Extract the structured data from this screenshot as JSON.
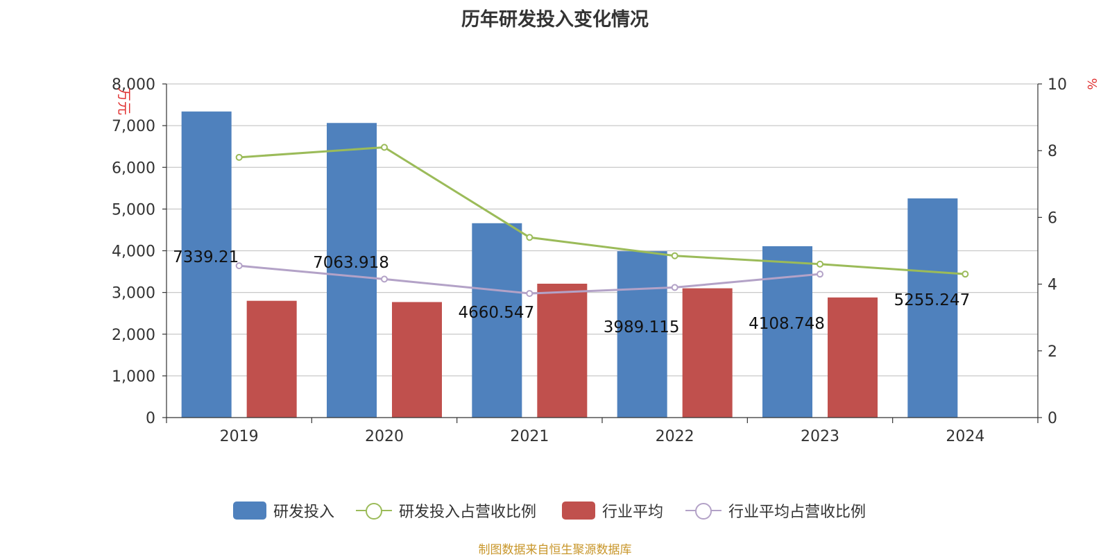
{
  "title": "历年研发投入变化情况",
  "source": "制图数据来自恒生聚源数据库",
  "chart_data": {
    "type": "bar",
    "categories": [
      "2019",
      "2020",
      "2021",
      "2022",
      "2023",
      "2024"
    ],
    "y_left": {
      "unit": "万元",
      "ylim": [
        0,
        8000
      ],
      "ticks": [
        "0",
        "1,000",
        "2,000",
        "3,000",
        "4,000",
        "5,000",
        "6,000",
        "7,000",
        "8,000"
      ],
      "tick_values": [
        0,
        1000,
        2000,
        3000,
        4000,
        5000,
        6000,
        7000,
        8000
      ]
    },
    "y_right": {
      "unit": "%",
      "ylim": [
        0,
        10
      ],
      "ticks": [
        "0",
        "2",
        "4",
        "6",
        "8",
        "10"
      ],
      "tick_values": [
        0,
        2,
        4,
        6,
        8,
        10
      ]
    },
    "grid": true,
    "legend_position": "bottom",
    "series": [
      {
        "name": "研发投入",
        "kind": "bar",
        "axis": "left",
        "color": "#4f81bd",
        "values": [
          7339.21,
          7063.918,
          4660.547,
          3989.115,
          4108.748,
          5255.247
        ],
        "labels": [
          "7339.21",
          "7063.918",
          "4660.547",
          "3989.115",
          "4108.748",
          "5255.247"
        ]
      },
      {
        "name": "研发投入占营收比例",
        "kind": "line",
        "axis": "right",
        "color": "#9bbb59",
        "values": [
          7.8,
          8.1,
          5.4,
          4.85,
          4.6,
          4.3
        ]
      },
      {
        "name": "行业平均",
        "kind": "bar",
        "axis": "left",
        "color": "#c0504d",
        "values": [
          2800,
          2770,
          3210,
          3100,
          2880,
          null
        ]
      },
      {
        "name": "行业平均占营收比例",
        "kind": "line",
        "axis": "right",
        "color": "#b3a2c7",
        "values": [
          4.55,
          4.15,
          3.72,
          3.9,
          4.3,
          null
        ]
      }
    ]
  }
}
